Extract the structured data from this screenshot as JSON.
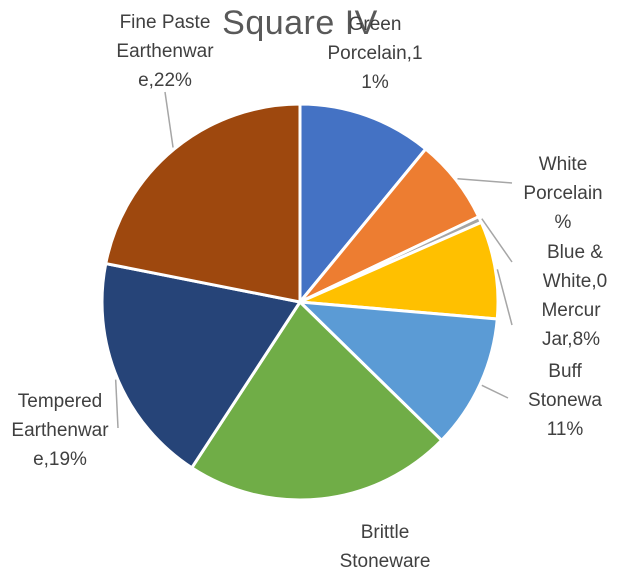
{
  "chart_data": {
    "type": "pie",
    "title": "Square IV",
    "slices": [
      {
        "name": "Green Porcelain",
        "value": 11,
        "color": "#4472C4",
        "label": "Green\nPorcelain,1\n1%"
      },
      {
        "name": "White Porcelain",
        "value": 7,
        "color": "#ED7D31",
        "label": "White\nPorcelain\n%"
      },
      {
        "name": "Blue & White",
        "value": 0.5,
        "color": "#A5A5A5",
        "label": "Blue &\nWhite,0"
      },
      {
        "name": "Mercury Jar",
        "value": 8,
        "color": "#FFC000",
        "label": "Mercur\nJar,8%"
      },
      {
        "name": "Buff Stoneware",
        "value": 11,
        "color": "#5B9BD5",
        "label": "Buff\nStonewa\n11%"
      },
      {
        "name": "Brittle Stoneware",
        "value": 22,
        "color": "#70AD47",
        "label": "Brittle\nStoneware"
      },
      {
        "name": "Tempered Earthenware",
        "value": 19,
        "color": "#264478",
        "label": "Tempered\nEarthenwar\ne,19%"
      },
      {
        "name": "Fine Paste Earthenware",
        "value": 22,
        "color": "#9E480E",
        "label": "Fine Paste\nEarthenwar\ne,22%"
      }
    ]
  }
}
